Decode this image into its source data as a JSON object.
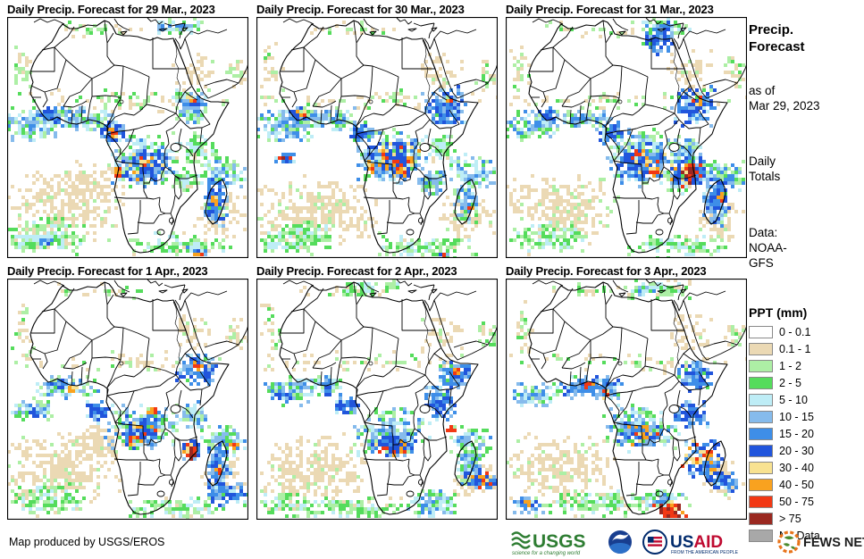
{
  "panels": [
    {
      "title": "Daily Precip. Forecast for 29 Mar., 2023"
    },
    {
      "title": "Daily Precip. Forecast for 30 Mar., 2023"
    },
    {
      "title": "Daily Precip. Forecast for 31 Mar., 2023"
    },
    {
      "title": "Daily Precip. Forecast for 1 Apr., 2023"
    },
    {
      "title": "Daily Precip. Forecast for 2 Apr., 2023"
    },
    {
      "title": "Daily Precip. Forecast for 3 Apr., 2023"
    }
  ],
  "sidebar": {
    "heading_line1": "Precip.",
    "heading_line2": "Forecast",
    "as_of_label": "as of",
    "as_of_date": "Mar 29, 2023",
    "totals_line1": "Daily",
    "totals_line2": "Totals",
    "data_label": "Data:",
    "data_source_line1": "NOAA-",
    "data_source_line2": "GFS"
  },
  "legend": {
    "title": "PPT (mm)",
    "items": [
      {
        "label": "0 - 0.1",
        "color": "#FFFFFF"
      },
      {
        "label": "0.1 - 1",
        "color": "#EBD9B4"
      },
      {
        "label": "1 - 2",
        "color": "#ADEFA5"
      },
      {
        "label": "2 - 5",
        "color": "#55DC5C"
      },
      {
        "label": "5 - 10",
        "color": "#BEEDF6"
      },
      {
        "label": "10 - 15",
        "color": "#86BBEC"
      },
      {
        "label": "15 - 20",
        "color": "#3E8EE8"
      },
      {
        "label": "20 - 30",
        "color": "#2155DC"
      },
      {
        "label": "30 - 40",
        "color": "#F8E291"
      },
      {
        "label": "40 - 50",
        "color": "#F9A21F"
      },
      {
        "label": "50 - 75",
        "color": "#F23814"
      },
      {
        "label": "> 75",
        "color": "#9A2820"
      },
      {
        "label": "No Data",
        "color": "#A8A8A8"
      }
    ]
  },
  "footer": {
    "credit": "Map produced by USGS/EROS",
    "logos": [
      {
        "name": "USGS",
        "tagline": "science for a changing world"
      },
      {
        "name": "NOAA"
      },
      {
        "name": "USAID",
        "part1": "US",
        "part2": "AID",
        "tagline": "FROM THE AMERICAN PEOPLE"
      },
      {
        "name": "FEWS NET"
      }
    ]
  }
}
